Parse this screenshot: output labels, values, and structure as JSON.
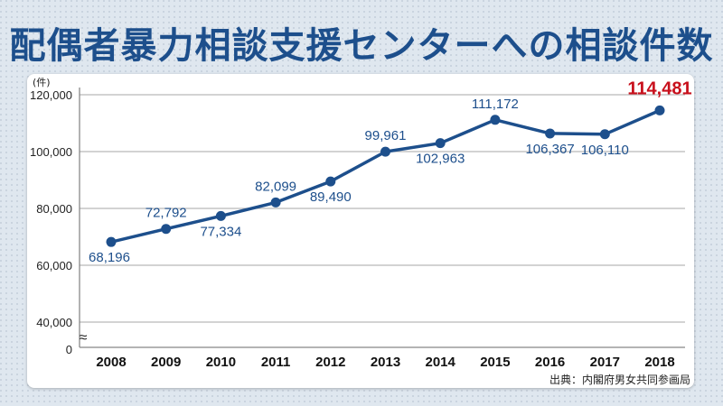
{
  "title": "配偶者暴力相談支援センターへの相談件数",
  "source": "出典：内閣府男女共同参画局",
  "chart_data": {
    "type": "line",
    "y_unit": "(件)",
    "x": [
      "2008",
      "2009",
      "2010",
      "2011",
      "2012",
      "2013",
      "2014",
      "2015",
      "2016",
      "2017",
      "2018"
    ],
    "values": [
      68196,
      72792,
      77334,
      82099,
      89490,
      99961,
      102963,
      111172,
      106367,
      106110,
      114481
    ],
    "value_labels": [
      "68,196",
      "72,792",
      "77,334",
      "82,099",
      "89,490",
      "99,961",
      "102,963",
      "111,172",
      "106,367",
      "106,110",
      "114,481"
    ],
    "y_ticks": [
      {
        "value": 40000,
        "label": "40,000"
      },
      {
        "value": 60000,
        "label": "60,000"
      },
      {
        "value": 80000,
        "label": "80,000"
      },
      {
        "value": 100000,
        "label": "100,000"
      },
      {
        "value": 120000,
        "label": "120,000"
      }
    ],
    "y_zero_label": "0",
    "axis_break_symbol": "≈",
    "ylim": [
      40000,
      120000
    ],
    "highlight_index": 10,
    "colors": {
      "line": "#1d4f8c",
      "highlight": "#c8101c",
      "grid": "#b9b9b9",
      "label": "#1d4f8c"
    }
  }
}
